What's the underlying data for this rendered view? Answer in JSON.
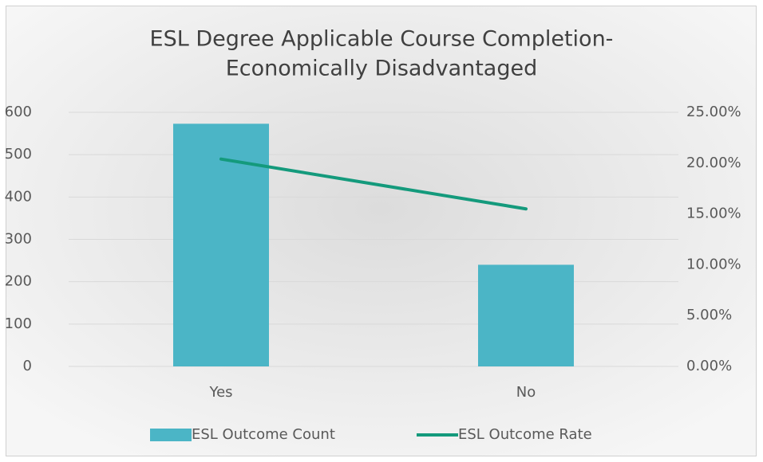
{
  "chart_data": {
    "type": "combo",
    "title": [
      "ESL Degree Applicable Course Completion-",
      "Economically Disadvantaged"
    ],
    "categories": [
      "Yes",
      "No"
    ],
    "series": [
      {
        "name": "ESL Outcome Count",
        "type": "bar",
        "color": "#4bb5c6",
        "values": [
          573,
          240
        ]
      },
      {
        "name": "ESL Outcome Rate",
        "type": "line",
        "axis": "y2",
        "color": "#149a7c",
        "values": [
          20.4,
          15.5
        ]
      }
    ],
    "ylim": [
      0,
      600
    ],
    "yticks": [
      0,
      100,
      200,
      300,
      400,
      500,
      600
    ],
    "y2lim": [
      0,
      25
    ],
    "y2ticks": [
      {
        "value": 0,
        "label": "0.00%"
      },
      {
        "value": 5,
        "label": "5.00%"
      },
      {
        "value": 10,
        "label": "10.00%"
      },
      {
        "value": 15,
        "label": "15.00%"
      },
      {
        "value": 20,
        "label": "20.00%"
      },
      {
        "value": 25,
        "label": "25.00%"
      }
    ],
    "grid": true,
    "legend": "bottom"
  }
}
